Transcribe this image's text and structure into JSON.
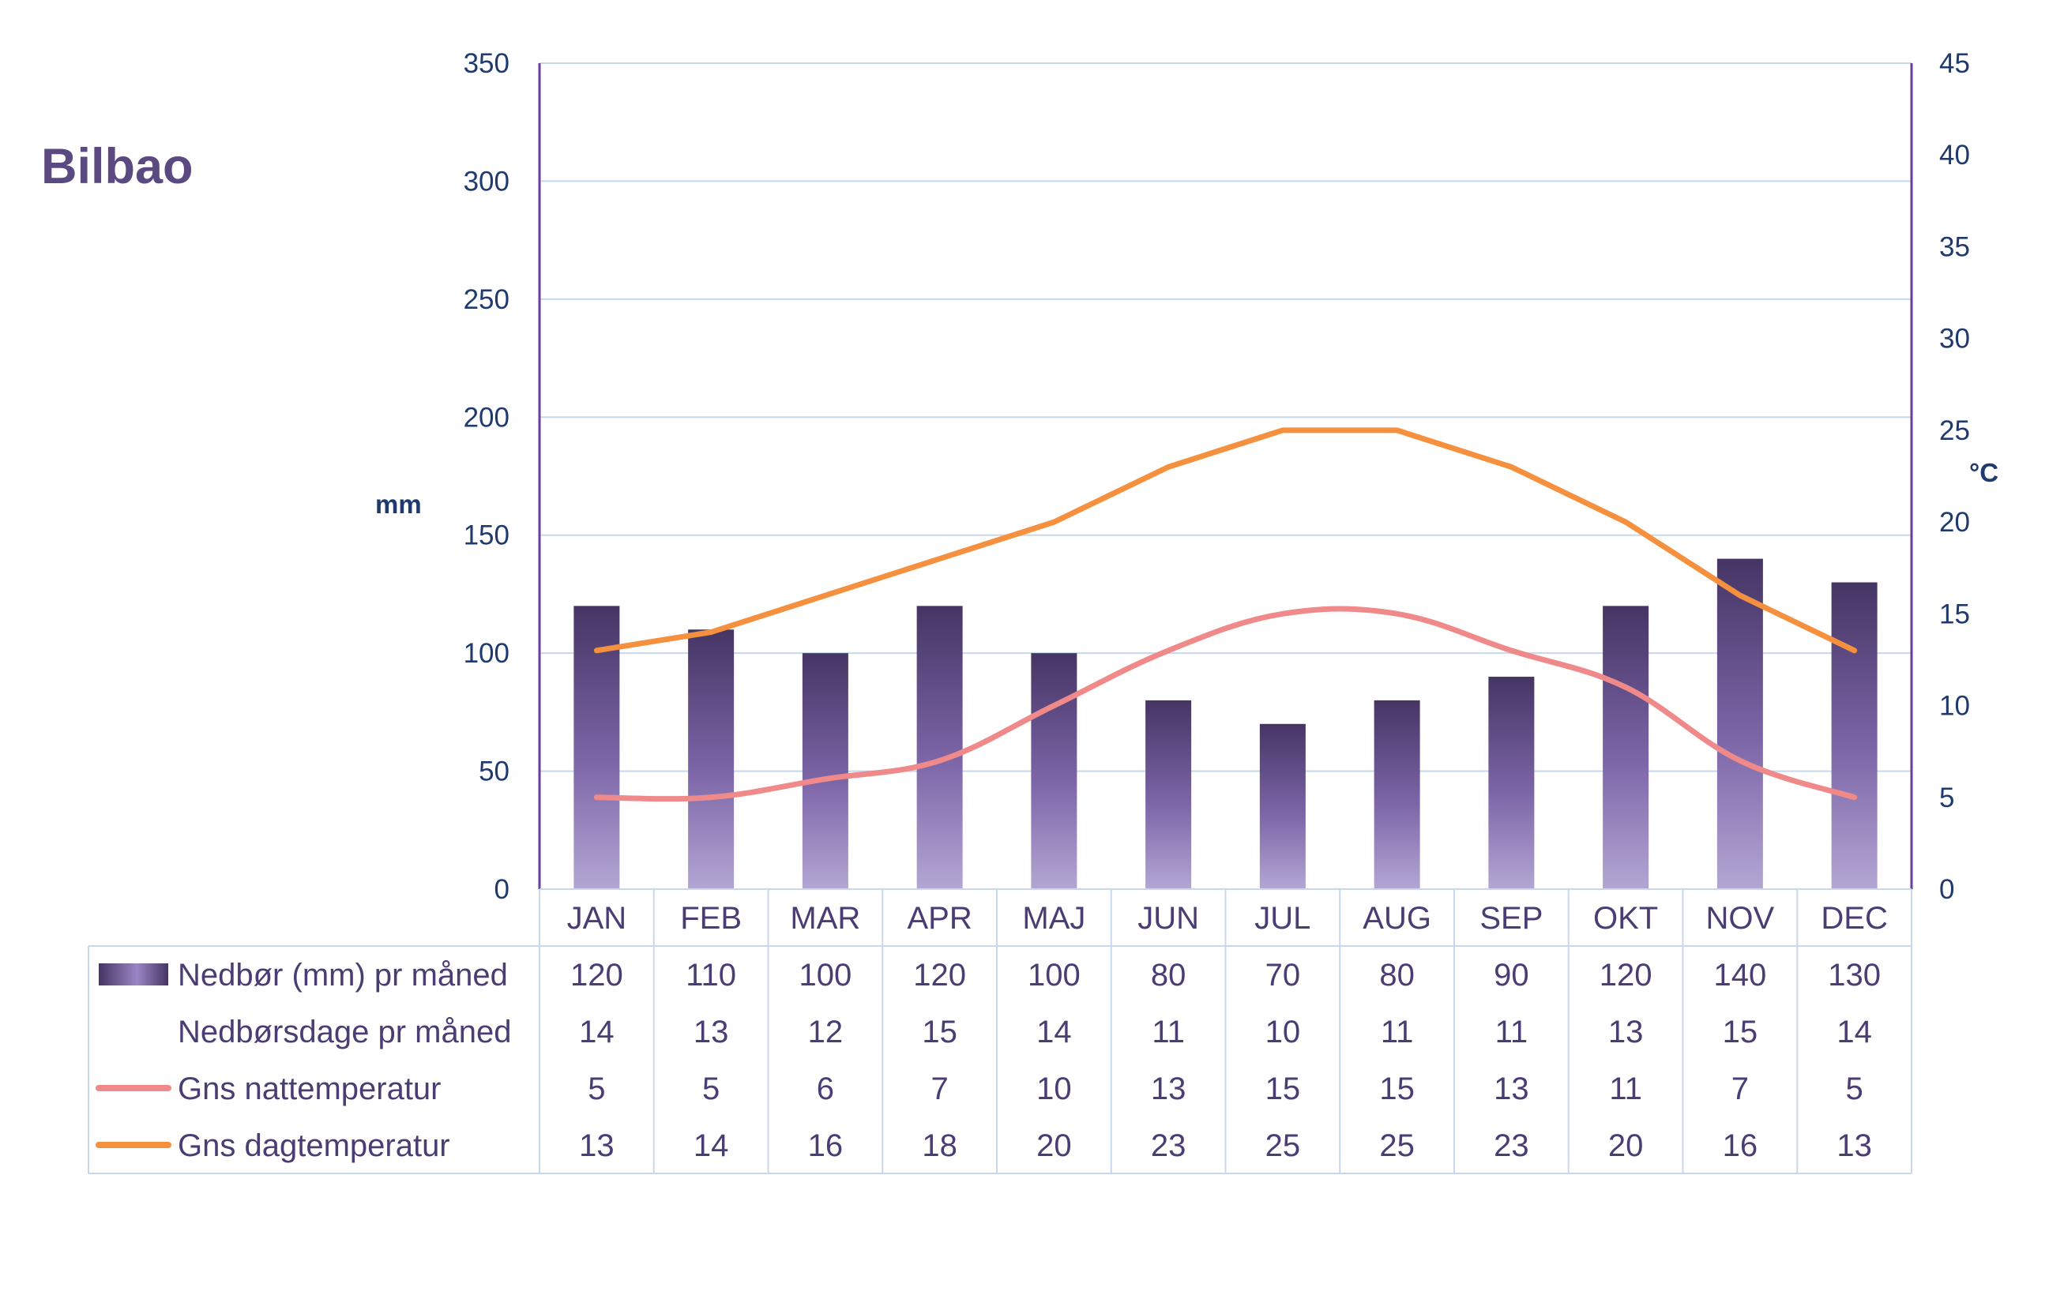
{
  "chart_data": {
    "type": "bar",
    "title": "Bilbao",
    "categories": [
      "JAN",
      "FEB",
      "MAR",
      "APR",
      "MAJ",
      "JUN",
      "JUL",
      "AUG",
      "SEP",
      "OKT",
      "NOV",
      "DEC"
    ],
    "left_axis": {
      "label": "mm",
      "range": [
        0,
        350
      ],
      "ticks": [
        "0",
        "50",
        "100",
        "150",
        "200",
        "250",
        "300",
        "350"
      ]
    },
    "right_axis": {
      "label": "°C",
      "range": [
        0,
        45
      ],
      "ticks": [
        "0",
        "5",
        "10",
        "15",
        "20",
        "25",
        "30",
        "35",
        "40",
        "45"
      ]
    },
    "grid": true,
    "series": [
      {
        "name": "Nedbør (mm) pr måned",
        "type": "bar",
        "axis": "left",
        "values": [
          120,
          110,
          100,
          120,
          100,
          80,
          70,
          80,
          90,
          120,
          140,
          130
        ],
        "color": "#5a4a82"
      },
      {
        "name": "Nedbørsdage pr måned",
        "type": "table-only",
        "values": [
          14,
          13,
          12,
          15,
          14,
          11,
          10,
          11,
          11,
          13,
          15,
          14
        ]
      },
      {
        "name": "Gns nattemperatur",
        "type": "line",
        "axis": "right",
        "values": [
          5,
          5,
          6,
          7,
          10,
          13,
          15,
          15,
          13,
          11,
          7,
          5
        ],
        "color": "#f08a8a"
      },
      {
        "name": "Gns dagtemperatur",
        "type": "line",
        "axis": "right",
        "values": [
          13,
          14,
          16,
          18,
          20,
          23,
          25,
          25,
          23,
          20,
          16,
          13
        ],
        "color": "#f5913e"
      }
    ],
    "data_table": {
      "rows": [
        {
          "label": "Nedbør (mm) pr måned",
          "values": [
            "120",
            "110",
            "100",
            "120",
            "100",
            "80",
            "70",
            "80",
            "90",
            "120",
            "140",
            "130"
          ],
          "key": "bar"
        },
        {
          "label": "Nedbørsdage pr måned",
          "values": [
            "14",
            "13",
            "12",
            "15",
            "14",
            "11",
            "10",
            "11",
            "11",
            "13",
            "15",
            "14"
          ],
          "key": "none"
        },
        {
          "label": "Gns nattemperatur",
          "values": [
            "5",
            "5",
            "6",
            "7",
            "10",
            "13",
            "15",
            "15",
            "13",
            "11",
            "7",
            "5"
          ],
          "key": "pink-line"
        },
        {
          "label": "Gns dagtemperatur",
          "values": [
            "13",
            "14",
            "16",
            "18",
            "20",
            "23",
            "25",
            "25",
            "23",
            "20",
            "16",
            "13"
          ],
          "key": "orange-line"
        }
      ]
    }
  },
  "colors": {
    "bar_top": "#453564",
    "bar_mid": "#7d66a8",
    "bar_bottom": "#b3a6d3",
    "night_line": "#f08a8a",
    "day_line": "#f5913e",
    "axis_line": "#6a3d9a",
    "grid_line": "#c8d8ec",
    "table_border": "#c8d8ec",
    "title": "#5b4a82",
    "tick_text": "#1f3a6e"
  }
}
